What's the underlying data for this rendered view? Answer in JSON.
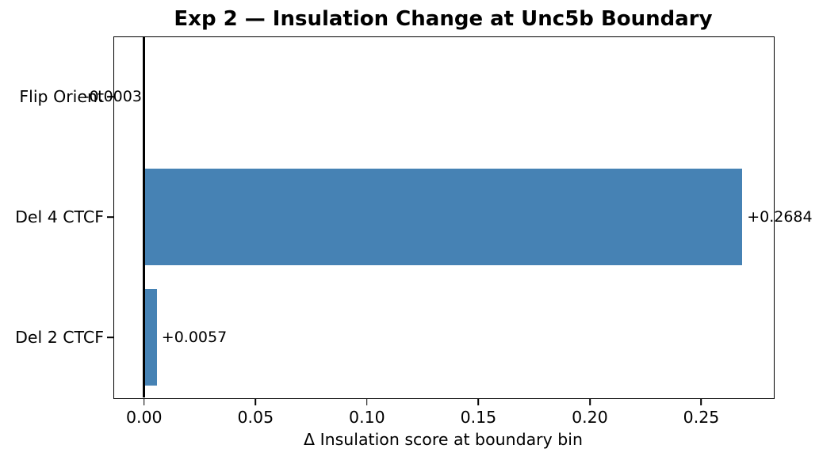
{
  "chart_data": {
    "type": "bar",
    "orientation": "horizontal",
    "title": "Exp 2 — Insulation Change at Unc5b Boundary",
    "xlabel": "Δ Insulation score at boundary bin",
    "ylabel": "",
    "categories": [
      "Flip Orient",
      "Del 4 CTCF",
      "Del 2 CTCF"
    ],
    "values": [
      -0.0003,
      0.2684,
      0.0057
    ],
    "value_labels": [
      "-0.0003",
      "+0.2684",
      "+0.0057"
    ],
    "xticks": [
      0.0,
      0.05,
      0.1,
      0.15,
      0.2,
      0.25
    ],
    "xtick_labels": [
      "0.00",
      "0.05",
      "0.10",
      "0.15",
      "0.20",
      "0.25"
    ],
    "xlim": [
      -0.0138,
      0.2822
    ],
    "bar_color": "#4682b4",
    "bar_height_fraction": 0.8,
    "zero_line": true,
    "zero_line_color": "#000000",
    "grid": false,
    "legend": null
  }
}
